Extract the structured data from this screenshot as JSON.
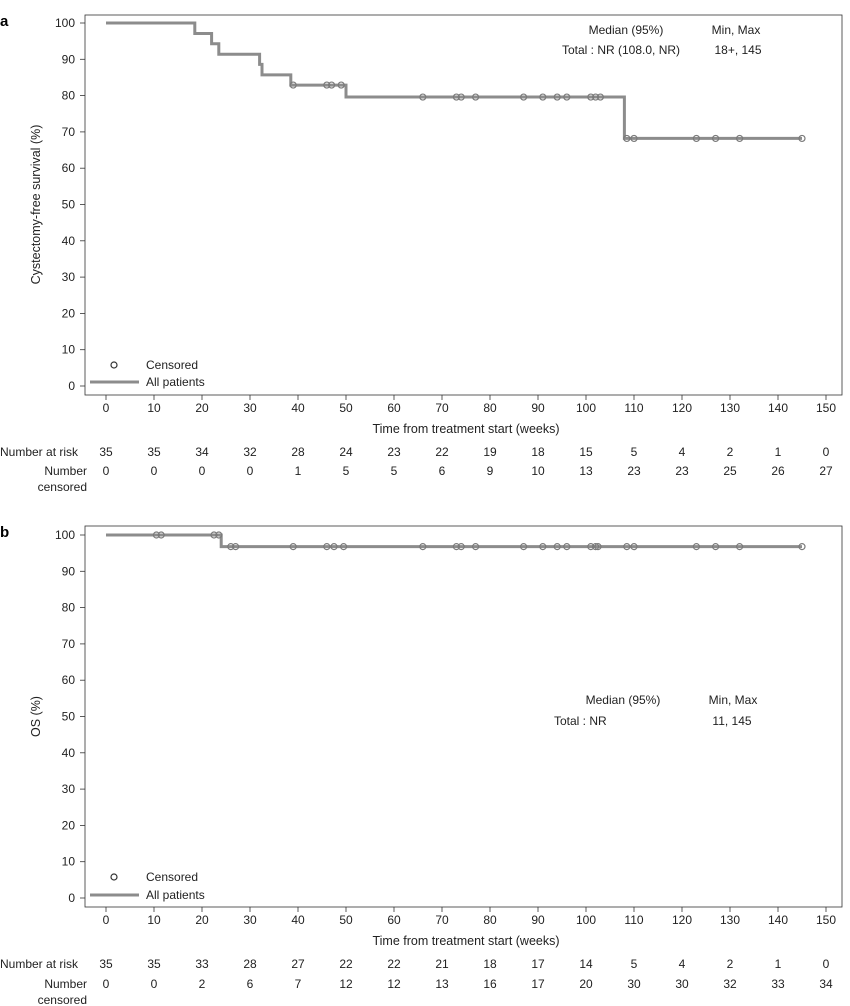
{
  "chart_data": [
    {
      "panel": "a",
      "type": "line",
      "step": true,
      "title": "",
      "xlabel": "Time from treatment start (weeks)",
      "ylabel": "Cystectomy-free survival (%)",
      "xlim": [
        0,
        150
      ],
      "ylim": [
        0,
        100
      ],
      "xticks": [
        0,
        10,
        20,
        30,
        40,
        50,
        60,
        70,
        80,
        90,
        100,
        110,
        120,
        130,
        140,
        150
      ],
      "yticks": [
        0,
        10,
        20,
        30,
        40,
        50,
        60,
        70,
        80,
        90,
        100
      ],
      "color": "#8c8c8c",
      "series": [
        {
          "name": "All patients",
          "x": [
            0,
            18.5,
            22,
            23.5,
            32,
            32.5,
            38.5,
            50,
            108
          ],
          "y": [
            100,
            97.1,
            94.3,
            91.4,
            88.6,
            85.7,
            82.9,
            79.6,
            68.2
          ]
        }
      ],
      "censored": [
        {
          "x": 39,
          "y": 82.9
        },
        {
          "x": 46,
          "y": 82.9
        },
        {
          "x": 47,
          "y": 82.9
        },
        {
          "x": 49,
          "y": 82.9
        },
        {
          "x": 66,
          "y": 79.6
        },
        {
          "x": 73,
          "y": 79.6
        },
        {
          "x": 74,
          "y": 79.6
        },
        {
          "x": 77,
          "y": 79.6
        },
        {
          "x": 87,
          "y": 79.6
        },
        {
          "x": 91,
          "y": 79.6
        },
        {
          "x": 94,
          "y": 79.6
        },
        {
          "x": 96,
          "y": 79.6
        },
        {
          "x": 101,
          "y": 79.6
        },
        {
          "x": 102,
          "y": 79.6
        },
        {
          "x": 103,
          "y": 79.6
        },
        {
          "x": 108.5,
          "y": 68.2
        },
        {
          "x": 110,
          "y": 68.2
        },
        {
          "x": 123,
          "y": 68.2
        },
        {
          "x": 127,
          "y": 68.2
        },
        {
          "x": 132,
          "y": 68.2
        },
        {
          "x": 145,
          "y": 68.2
        }
      ],
      "legend": {
        "censored_label": "Censored",
        "line_label": "All patients"
      },
      "summary": {
        "median_header": "Median (95%)",
        "minmax_header": "Min, Max",
        "row_label": "Total : NR (108.0, NR)",
        "minmax_value": "18+,  145"
      },
      "risk_table": {
        "at_risk_label": "Number at risk",
        "censored_label": "Number censored",
        "at_risk": [
          35,
          35,
          34,
          32,
          28,
          24,
          23,
          22,
          19,
          18,
          15,
          5,
          4,
          2,
          1,
          0
        ],
        "censored": [
          0,
          0,
          0,
          0,
          1,
          5,
          5,
          6,
          9,
          10,
          13,
          23,
          23,
          25,
          26,
          27
        ]
      }
    },
    {
      "panel": "b",
      "type": "line",
      "step": true,
      "title": "",
      "xlabel": "Time from treatment start (weeks)",
      "ylabel": "OS (%)",
      "xlim": [
        0,
        150
      ],
      "ylim": [
        0,
        100
      ],
      "xticks": [
        0,
        10,
        20,
        30,
        40,
        50,
        60,
        70,
        80,
        90,
        100,
        110,
        120,
        130,
        140,
        150
      ],
      "yticks": [
        0,
        10,
        20,
        30,
        40,
        50,
        60,
        70,
        80,
        90,
        100
      ],
      "color": "#8c8c8c",
      "series": [
        {
          "name": "All patients",
          "x": [
            0,
            24
          ],
          "y": [
            100,
            96.8
          ]
        }
      ],
      "censored": [
        {
          "x": 10.5,
          "y": 100
        },
        {
          "x": 11.5,
          "y": 100
        },
        {
          "x": 22.5,
          "y": 100
        },
        {
          "x": 23.5,
          "y": 100
        },
        {
          "x": 26,
          "y": 96.8
        },
        {
          "x": 27,
          "y": 96.8
        },
        {
          "x": 39,
          "y": 96.8
        },
        {
          "x": 46,
          "y": 96.8
        },
        {
          "x": 47.5,
          "y": 96.8
        },
        {
          "x": 49.5,
          "y": 96.8
        },
        {
          "x": 66,
          "y": 96.8
        },
        {
          "x": 73,
          "y": 96.8
        },
        {
          "x": 74,
          "y": 96.8
        },
        {
          "x": 77,
          "y": 96.8
        },
        {
          "x": 87,
          "y": 96.8
        },
        {
          "x": 91,
          "y": 96.8
        },
        {
          "x": 94,
          "y": 96.8
        },
        {
          "x": 96,
          "y": 96.8
        },
        {
          "x": 101,
          "y": 96.8
        },
        {
          "x": 102,
          "y": 96.8
        },
        {
          "x": 102.5,
          "y": 96.8
        },
        {
          "x": 108.5,
          "y": 96.8
        },
        {
          "x": 110,
          "y": 96.8
        },
        {
          "x": 123,
          "y": 96.8
        },
        {
          "x": 127,
          "y": 96.8
        },
        {
          "x": 132,
          "y": 96.8
        },
        {
          "x": 145,
          "y": 96.8
        }
      ],
      "legend": {
        "censored_label": "Censored",
        "line_label": "All patients"
      },
      "summary": {
        "median_header": "Median (95%)",
        "minmax_header": "Min, Max",
        "row_label": "Total : NR",
        "minmax_value": "11,   145"
      },
      "risk_table": {
        "at_risk_label": "Number at risk",
        "censored_label": "Number censored",
        "at_risk": [
          35,
          35,
          33,
          28,
          27,
          22,
          22,
          21,
          18,
          17,
          14,
          5,
          4,
          2,
          1,
          0
        ],
        "censored": [
          0,
          0,
          2,
          6,
          7,
          12,
          12,
          13,
          16,
          17,
          20,
          30,
          30,
          32,
          33,
          34
        ]
      }
    }
  ]
}
